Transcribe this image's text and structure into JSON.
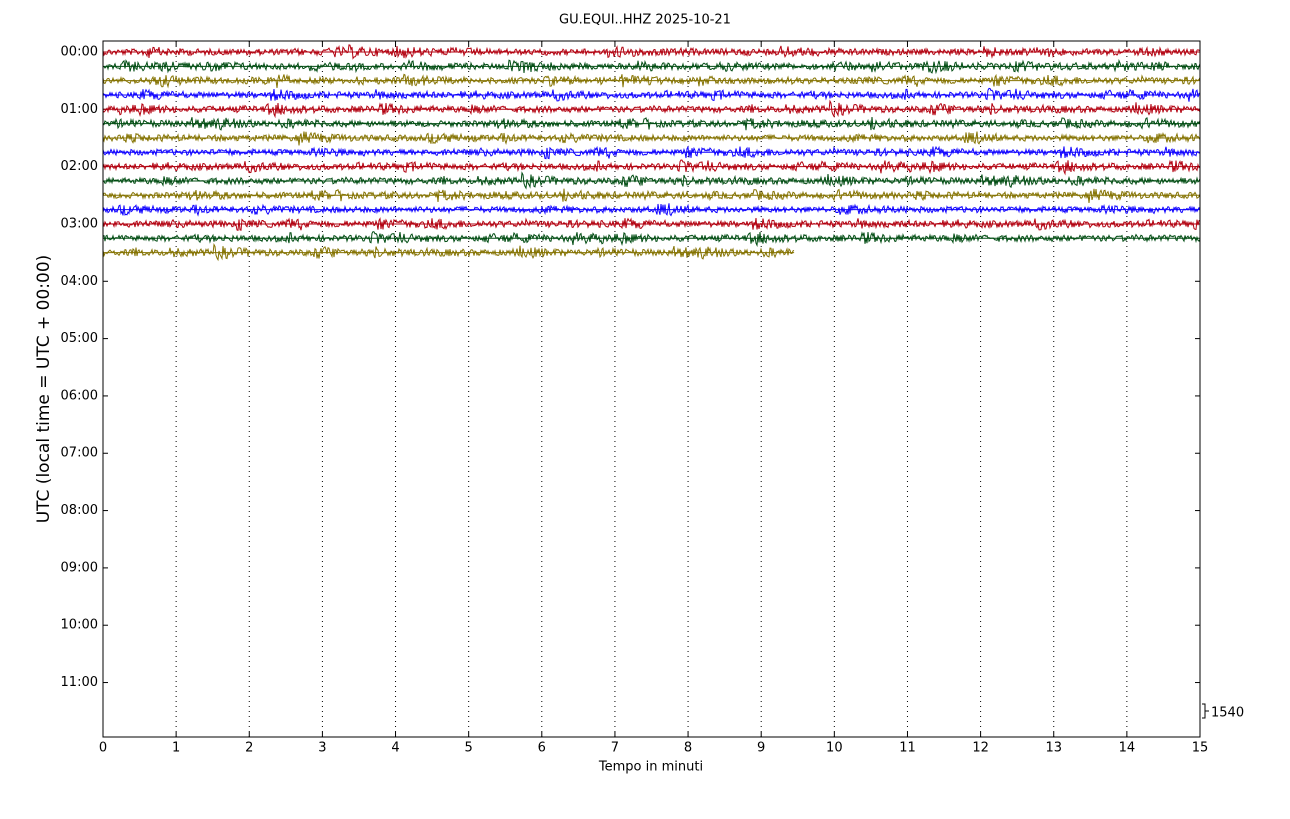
{
  "chart_data": {
    "type": "helicorder",
    "title": "GU.EQUI..HHZ 2025-10-21",
    "xlabel": "Tempo in minuti",
    "ylabel": "UTC (local time = UTC + 00:00)",
    "xlim": [
      0,
      15
    ],
    "xticks": [
      0,
      1,
      2,
      3,
      4,
      5,
      6,
      7,
      8,
      9,
      10,
      11,
      12,
      13,
      14,
      15
    ],
    "ylim": [
      717,
      -11.5
    ],
    "yticks": [
      {
        "value": 0,
        "label": "00:00"
      },
      {
        "value": 60,
        "label": "01:00"
      },
      {
        "value": 120,
        "label": "02:00"
      },
      {
        "value": 180,
        "label": "03:00"
      },
      {
        "value": 240,
        "label": "04:00"
      },
      {
        "value": 300,
        "label": "05:00"
      },
      {
        "value": 360,
        "label": "06:00"
      },
      {
        "value": 420,
        "label": "07:00"
      },
      {
        "value": 480,
        "label": "08:00"
      },
      {
        "value": 540,
        "label": "09:00"
      },
      {
        "value": 600,
        "label": "10:00"
      },
      {
        "value": 660,
        "label": "11:00"
      }
    ],
    "grid": "x",
    "scale_label": 1540,
    "traces": [
      {
        "color": "#b2000f",
        "offset": 0,
        "x": [
          0,
          15
        ]
      },
      {
        "color": "#004c12",
        "offset": 15,
        "x": [
          0,
          15
        ]
      },
      {
        "color": "#847200",
        "offset": 30,
        "x": [
          0,
          15
        ]
      },
      {
        "color": "#0e01ff",
        "offset": 45,
        "x": [
          0,
          15
        ]
      },
      {
        "color": "#b2000f",
        "offset": 60,
        "x": [
          0,
          15
        ]
      },
      {
        "color": "#004c12",
        "offset": 75,
        "x": [
          0,
          15
        ]
      },
      {
        "color": "#847200",
        "offset": 90,
        "x": [
          0,
          15
        ]
      },
      {
        "color": "#0e01ff",
        "offset": 105,
        "x": [
          0,
          15
        ]
      },
      {
        "color": "#b2000f",
        "offset": 120,
        "x": [
          0,
          15
        ]
      },
      {
        "color": "#004c12",
        "offset": 135,
        "x": [
          0,
          15
        ]
      },
      {
        "color": "#847200",
        "offset": 150,
        "x": [
          0,
          15
        ]
      },
      {
        "color": "#0e01ff",
        "offset": 165,
        "x": [
          0,
          15
        ]
      },
      {
        "color": "#b2000f",
        "offset": 180,
        "x": [
          0,
          15
        ]
      },
      {
        "color": "#004c12",
        "offset": 195,
        "x": [
          0,
          15
        ]
      },
      {
        "color": "#847200",
        "offset": 210,
        "x": [
          0,
          9.45
        ]
      }
    ]
  }
}
